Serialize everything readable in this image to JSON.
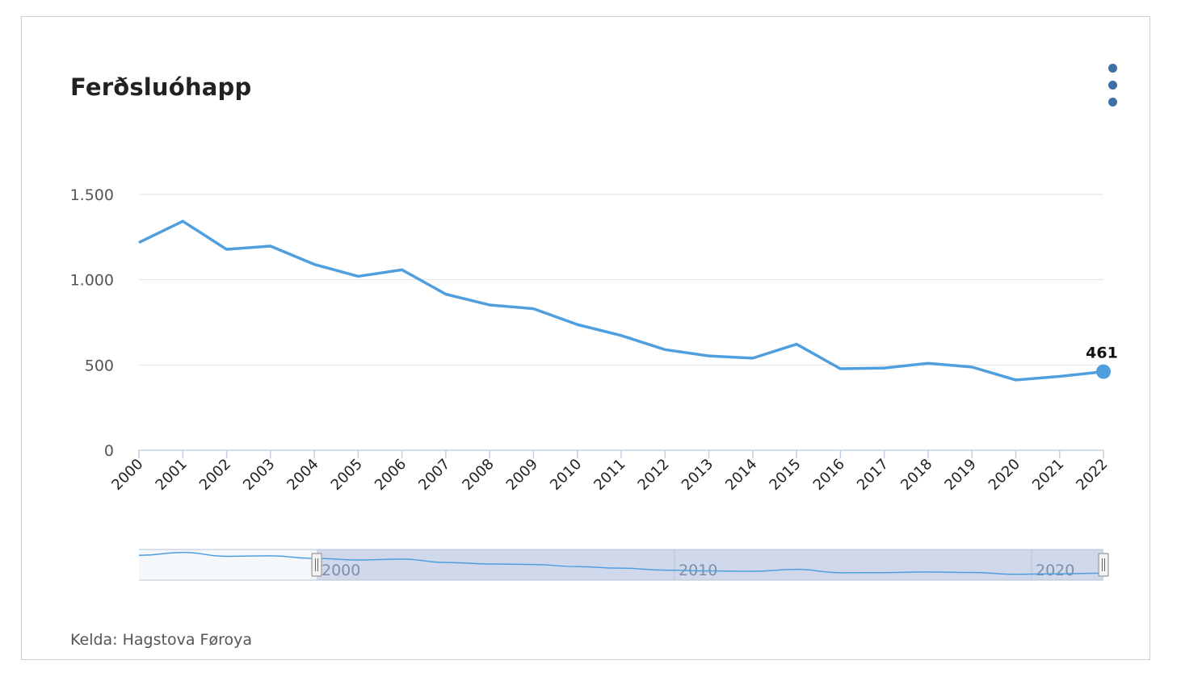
{
  "title": "Ferðsluóhapp",
  "source": "Kelda: Hagstova Føroya",
  "menu_icon": "dots-vertical-icon",
  "colors": {
    "line": "#4f9fdf",
    "accent_dots": "#3f6fa6",
    "navigator_fill": "#c9d3e8"
  },
  "chart_data": {
    "type": "line",
    "title": "Ferðsluóhapp",
    "xlabel": "",
    "ylabel": "",
    "x": [
      "2000",
      "2001",
      "2002",
      "2003",
      "2004",
      "2005",
      "2006",
      "2007",
      "2008",
      "2009",
      "2010",
      "2011",
      "2012",
      "2013",
      "2014",
      "2015",
      "2016",
      "2017",
      "2018",
      "2019",
      "2020",
      "2021",
      "2022"
    ],
    "series": [
      {
        "values": [
          1218,
          1343,
          1178,
          1197,
          1090,
          1020,
          1058,
          915,
          852,
          830,
          737,
          673,
          590,
          553,
          540,
          622,
          478,
          482,
          510,
          488,
          412,
          433,
          461
        ]
      }
    ],
    "ylim": [
      0,
      1500
    ],
    "y_ticks": [
      0,
      500,
      1000,
      1500
    ],
    "y_tick_labels": [
      "0",
      "500",
      "1.000",
      "1.500"
    ],
    "last_point_label": "461",
    "grid": true,
    "legend": "none",
    "navigator": {
      "labels": [
        "2000",
        "2010",
        "2020"
      ],
      "selected_range": [
        "2000",
        "2022"
      ]
    }
  }
}
